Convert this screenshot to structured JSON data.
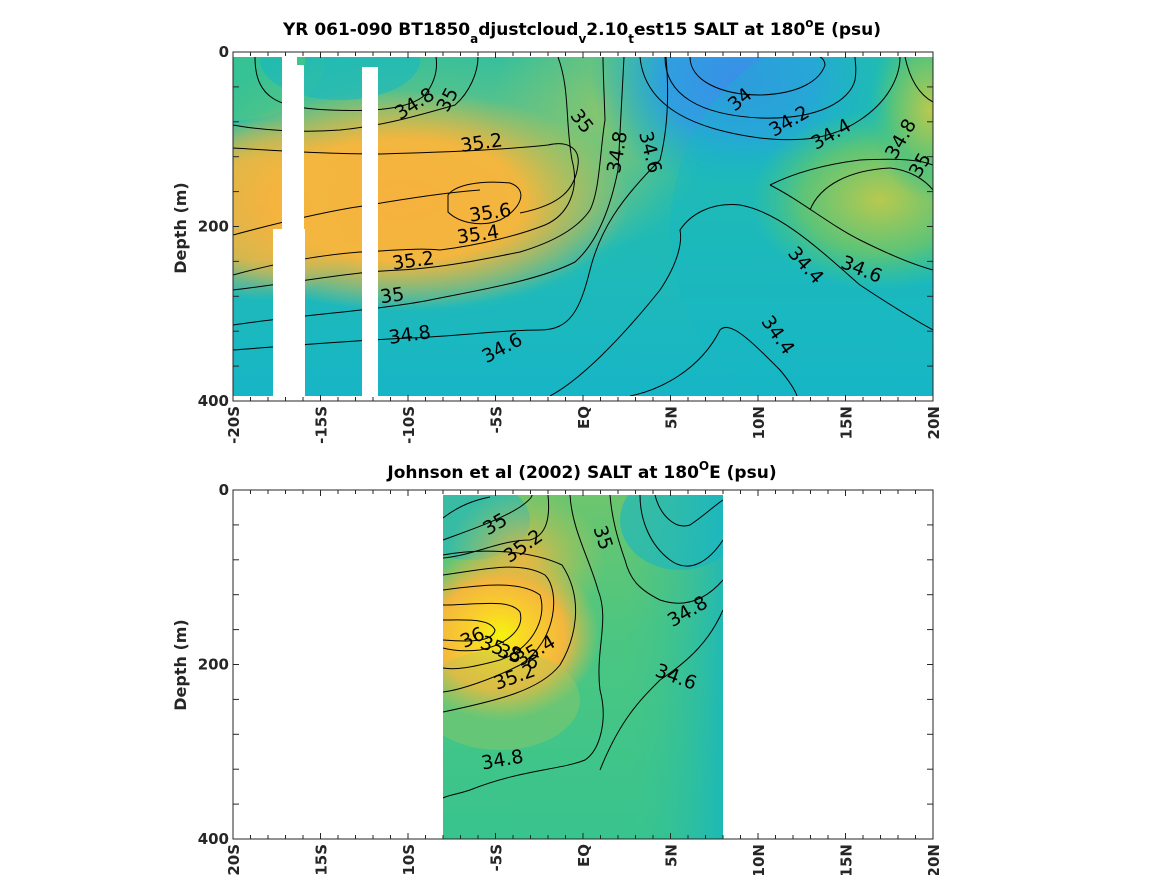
{
  "colors": {
    "salt_low": "#3a8ee8",
    "salt_mid_low": "#0fb3cc",
    "salt_mid": "#3fc48a",
    "salt_mid_high": "#a6c85a",
    "salt_high": "#f6b23e",
    "salt_max": "#f5f30e",
    "axis": "#262626"
  },
  "chart_data": [
    {
      "type": "heatmap",
      "title_parts": [
        "YR 061-090 BT1850",
        "a",
        "djustcloud",
        "v",
        "2.10",
        "t",
        "est15 SALT at 180",
        "o",
        "E (psu)"
      ],
      "ylabel": "Depth (m)",
      "xlabel": "",
      "xlim": [
        -20,
        20
      ],
      "ylim": [
        0,
        400
      ],
      "xtick_labels": [
        "-20S",
        "-15S",
        "-10S",
        "-5S",
        "EQ",
        "5N",
        "10N",
        "15N",
        "20N"
      ],
      "xtick_values": [
        -20,
        -15,
        -10,
        -5,
        0,
        5,
        10,
        15,
        20
      ],
      "ytick_labels": [
        "0",
        "200",
        "400"
      ],
      "ytick_values": [
        0,
        200,
        400
      ],
      "contour_labels": [
        {
          "text": "34.8",
          "lat": -9.6,
          "depth": 60
        },
        {
          "text": "35",
          "lat": -7.7,
          "depth": 55
        },
        {
          "text": "35.2",
          "lat": -5.8,
          "depth": 105
        },
        {
          "text": "35.6",
          "lat": -5.3,
          "depth": 185
        },
        {
          "text": "35.4",
          "lat": -6.0,
          "depth": 210
        },
        {
          "text": "35.2",
          "lat": -9.7,
          "depth": 240
        },
        {
          "text": "35",
          "lat": -10.9,
          "depth": 280
        },
        {
          "text": "34.8",
          "lat": -9.9,
          "depth": 325
        },
        {
          "text": "34.6",
          "lat": -4.6,
          "depth": 340
        },
        {
          "text": "35",
          "lat": -0.1,
          "depth": 80
        },
        {
          "text": "34.8",
          "lat": 2.0,
          "depth": 115
        },
        {
          "text": "34.6",
          "lat": 3.8,
          "depth": 115
        },
        {
          "text": "34",
          "lat": 9.0,
          "depth": 55
        },
        {
          "text": "34.2",
          "lat": 11.8,
          "depth": 80
        },
        {
          "text": "34.4",
          "lat": 14.2,
          "depth": 95
        },
        {
          "text": "34.8",
          "lat": 18.2,
          "depth": 100
        },
        {
          "text": "35",
          "lat": 19.3,
          "depth": 130
        },
        {
          "text": "34.4",
          "lat": 12.7,
          "depth": 245
        },
        {
          "text": "34.6",
          "lat": 15.9,
          "depth": 250
        },
        {
          "text": "34.4",
          "lat": 11.1,
          "depth": 325
        }
      ]
    },
    {
      "type": "heatmap",
      "title_parts": [
        "Johnson et al (2002) SALT at 180",
        "O",
        "E (psu)"
      ],
      "ylabel": "Depth (m)",
      "xlabel": "",
      "xlim": [
        -20,
        20
      ],
      "ylim": [
        0,
        400
      ],
      "data_lat_range": [
        -8,
        8
      ],
      "xtick_labels": [
        "-20S",
        "-15S",
        "-10S",
        "-5S",
        "EQ",
        "5N",
        "10N",
        "15N",
        "20N"
      ],
      "xtick_values": [
        -20,
        -15,
        -10,
        -5,
        0,
        5,
        10,
        15,
        20
      ],
      "ytick_labels": [
        "0",
        "200",
        "400"
      ],
      "ytick_values": [
        0,
        200,
        400
      ],
      "contour_labels": [
        {
          "text": "35",
          "lat": -5.0,
          "depth": 40
        },
        {
          "text": "35.2",
          "lat": -3.4,
          "depth": 65
        },
        {
          "text": "35",
          "lat": 1.1,
          "depth": 55
        },
        {
          "text": "34.8",
          "lat": 6.0,
          "depth": 140
        },
        {
          "text": "36",
          "lat": -6.3,
          "depth": 170
        },
        {
          "text": "35.8",
          "lat": -4.7,
          "depth": 183
        },
        {
          "text": "35.6",
          "lat": -3.7,
          "depth": 192
        },
        {
          "text": "35.4",
          "lat": -2.7,
          "depth": 185
        },
        {
          "text": "35.2",
          "lat": -3.9,
          "depth": 215
        },
        {
          "text": "34.6",
          "lat": 5.3,
          "depth": 215
        },
        {
          "text": "34.8",
          "lat": -4.6,
          "depth": 310
        }
      ]
    }
  ]
}
